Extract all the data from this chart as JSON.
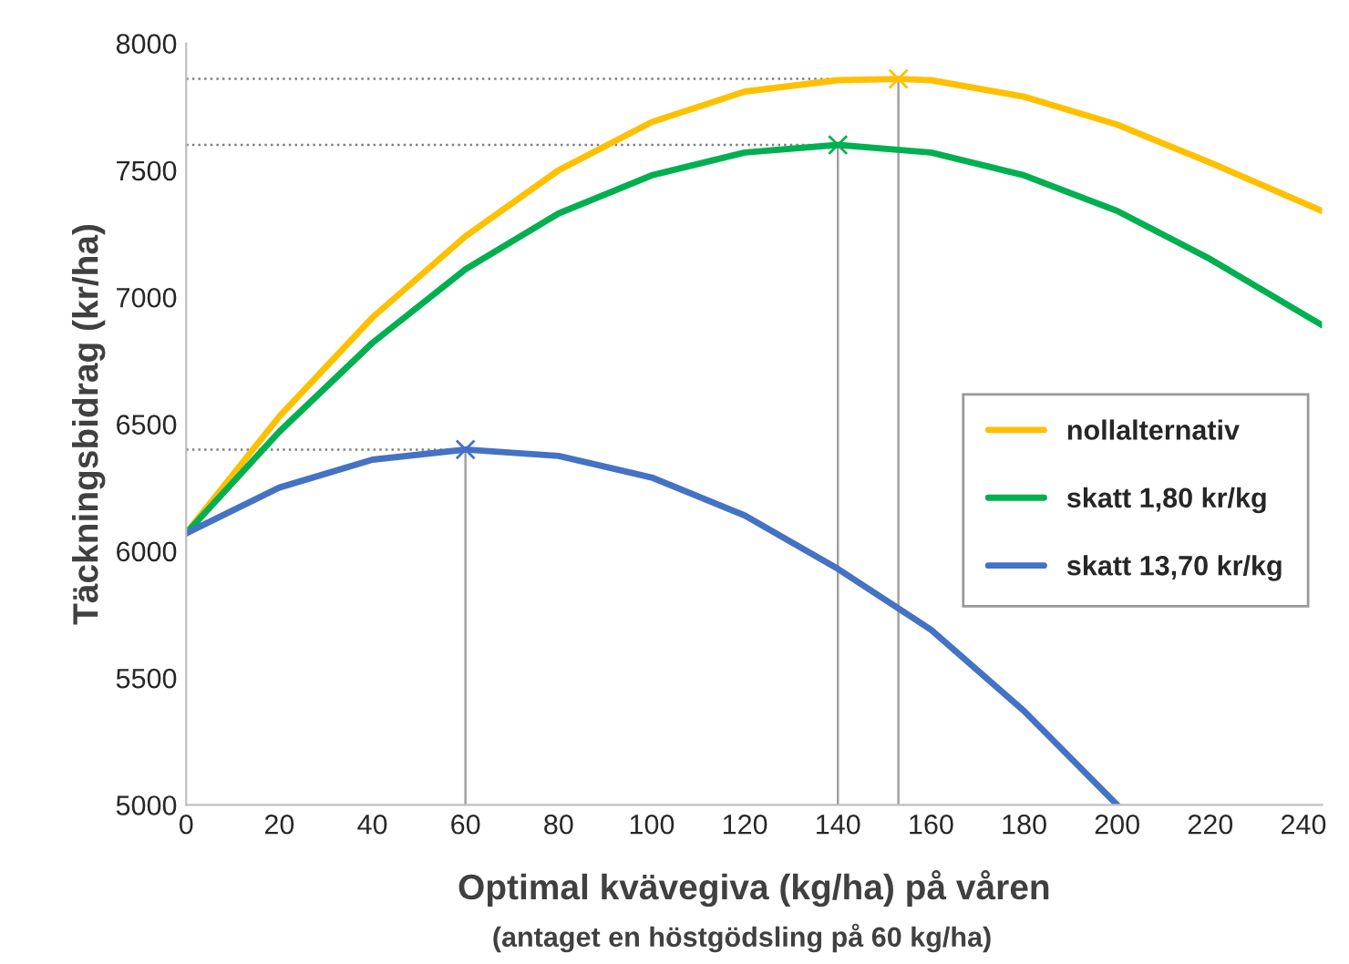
{
  "chart_data": {
    "type": "line",
    "xlabel": "Optimal kvävegiva (kg/ha) på våren",
    "ylabel": "Täckningsbidrag (kr/ha)",
    "annotations": [
      "(antaget en höstgödsling på 60 kg/ha)"
    ],
    "xlim": [
      0,
      244
    ],
    "xticks": [
      0,
      20,
      40,
      60,
      80,
      100,
      120,
      140,
      160,
      180,
      200,
      220,
      240
    ],
    "ylim": [
      5000,
      8000
    ],
    "yticks": [
      5000,
      5500,
      6000,
      6500,
      7000,
      7500,
      8000
    ],
    "grid": false,
    "legend": "right",
    "line_style": "solid",
    "series": [
      {
        "name": "nollalternativ",
        "color": "#ffc000",
        "x": [
          0,
          20,
          40,
          60,
          80,
          100,
          120,
          140,
          153,
          160,
          180,
          200,
          220,
          244
        ],
        "values": [
          6070,
          6530,
          6920,
          7240,
          7500,
          7690,
          7810,
          7855,
          7860,
          7855,
          7790,
          7680,
          7530,
          7340
        ]
      },
      {
        "name": "skatt 1,80 kr/kg",
        "color": "#00b050",
        "x": [
          0,
          20,
          40,
          60,
          80,
          100,
          120,
          140,
          160,
          180,
          200,
          220,
          244
        ],
        "values": [
          6070,
          6470,
          6820,
          7110,
          7330,
          7480,
          7570,
          7600,
          7570,
          7480,
          7340,
          7150,
          6890
        ]
      },
      {
        "name": "skatt 13,70 kr/kg",
        "color": "#4472c4",
        "x": [
          0,
          20,
          40,
          60,
          80,
          100,
          120,
          140,
          160,
          180,
          200
        ],
        "values": [
          6070,
          6250,
          6360,
          6400,
          6375,
          6290,
          6140,
          5930,
          5690,
          5370,
          5000
        ]
      },
      {
        "type": "line",
        "color": "#808080",
        "line_style": "dotted",
        "x": [
          0,
          153
        ],
        "values": [
          7860,
          7860
        ]
      },
      {
        "type": "line",
        "color": "#808080",
        "line_style": "dotted",
        "x": [
          0,
          140
        ],
        "values": [
          7600,
          7600
        ]
      },
      {
        "type": "line",
        "color": "#808080",
        "line_style": "dotted",
        "x": [
          0,
          60
        ],
        "values": [
          6400,
          6400
        ]
      },
      {
        "type": "line",
        "color": "#a0a0a0",
        "x": [
          153,
          153
        ],
        "values": [
          5000,
          7860
        ]
      },
      {
        "type": "line",
        "color": "#a0a0a0",
        "x": [
          140,
          140
        ],
        "values": [
          5000,
          7600
        ]
      },
      {
        "type": "line",
        "color": "#a0a0a0",
        "x": [
          60,
          60
        ],
        "values": [
          5000,
          6400
        ]
      },
      {
        "type": "scatter",
        "marker": "cross",
        "color": "#ffc000",
        "x": [
          153
        ],
        "values": [
          7860
        ]
      },
      {
        "type": "scatter",
        "marker": "cross",
        "color": "#00b050",
        "x": [
          140
        ],
        "values": [
          7600
        ]
      },
      {
        "type": "scatter",
        "marker": "cross",
        "color": "#4472c4",
        "x": [
          60
        ],
        "values": [
          6400
        ]
      }
    ]
  }
}
